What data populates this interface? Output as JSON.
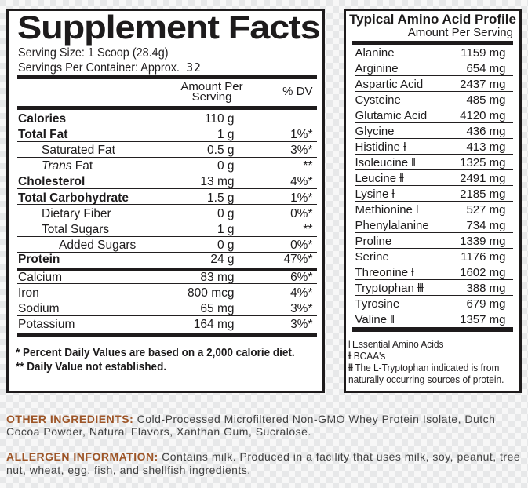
{
  "colors": {
    "accent_orange": "#9e5428",
    "panel_border": "#1d1a1b",
    "body_text": "#3f3f3f",
    "checker_dark": "#e8e8e8",
    "checker_light": "#f7f7f7"
  },
  "left_panel": {
    "title": "Supplement Facts",
    "serving_size": "Serving Size: 1 Scoop (28.4g)",
    "servings_per_container_label": "Servings Per Container: Approx.",
    "servings_per_container_value": "32",
    "header": {
      "amount_line1": "Amount Per",
      "amount_line2": "Serving",
      "dv": "% DV"
    },
    "rows": [
      {
        "name": "Calories",
        "value": "110 g",
        "dv": "",
        "style": "b"
      },
      {
        "name": "Total Fat",
        "value": "1 g",
        "dv": "1%*",
        "style": "b"
      },
      {
        "name": "Saturated Fat",
        "value": "0.5 g",
        "dv": "3%*",
        "indent": "i1"
      },
      {
        "name_em": "Trans",
        "name": " Fat",
        "value": "0 g",
        "dv": "**",
        "indent": "i1"
      },
      {
        "name": "Cholesterol",
        "value": "13 mg",
        "dv": "4%*",
        "style": "b"
      },
      {
        "name": "Total Carbohydrate",
        "value": "1.5 g",
        "dv": "1%*",
        "style": "b"
      },
      {
        "name": "Dietary Fiber",
        "value": "0 g",
        "dv": "0%*",
        "indent": "i1"
      },
      {
        "name": "Total Sugars",
        "value": "1 g",
        "dv": "**",
        "indent": "i1"
      },
      {
        "name": "Added Sugars",
        "value": "0 g",
        "dv": "0%*",
        "indent": "i2"
      },
      {
        "name": "Protein",
        "value": "24 g",
        "dv": "47%*",
        "style": "b"
      }
    ],
    "mineral_rows": [
      {
        "name": "Calcium",
        "value": "83 mg",
        "dv": "6%*"
      },
      {
        "name": "Iron",
        "value": "800 mcg",
        "dv": "4%*"
      },
      {
        "name": "Sodium",
        "value": "65 mg",
        "dv": "3%*"
      },
      {
        "name": "Potassium",
        "value": "164 mg",
        "dv": "3%*"
      }
    ],
    "footnotes": [
      {
        "text": "* Percent Daily Values are based on a 2,000 calorie diet."
      },
      {
        "text": "** Daily Value not established."
      }
    ]
  },
  "right_panel": {
    "title": "Typical Amino Acid Profile",
    "subtitle": "Amount Per Serving",
    "rows": [
      {
        "name": "Alanine",
        "mark": "",
        "value": "1159 mg"
      },
      {
        "name": "Arginine",
        "mark": "",
        "value": "654 mg"
      },
      {
        "name": "Aspartic Acid",
        "mark": "",
        "value": "2437 mg"
      },
      {
        "name": "Cysteine",
        "mark": "",
        "value": "485 mg"
      },
      {
        "name": "Glutamic Acid",
        "mark": "",
        "value": "4120 mg"
      },
      {
        "name": "Glycine",
        "mark": "",
        "value": "436 mg"
      },
      {
        "name": "Histidine",
        "mark": "ƚ",
        "value": "413 mg"
      },
      {
        "name": "Isoleucine",
        "mark": "ƚƚ",
        "value": "1325 mg"
      },
      {
        "name": "Leucine",
        "mark": "ƚƚ",
        "value": "2491 mg"
      },
      {
        "name": "Lysine",
        "mark": "ƚ",
        "value": "2185 mg"
      },
      {
        "name": "Methionine",
        "mark": "ƚ",
        "value": "527 mg"
      },
      {
        "name": "Phenylalanine",
        "mark": "",
        "value": "734 mg"
      },
      {
        "name": "Proline",
        "mark": "",
        "value": "1339 mg"
      },
      {
        "name": "Serine",
        "mark": "",
        "value": "1176 mg"
      },
      {
        "name": "Threonine",
        "mark": "ƚ",
        "value": "1602 mg"
      },
      {
        "name": "Tryptophan",
        "mark": "ƚƚƚ",
        "value": "388 mg"
      },
      {
        "name": "Tyrosine",
        "mark": "",
        "value": "679 mg"
      },
      {
        "name": "Valine",
        "mark": "ƚƚ",
        "value": "1357 mg"
      }
    ],
    "footnotes": [
      {
        "mark": "ƚ",
        "text": "Essential Amino Acids"
      },
      {
        "mark": "ƚƚ",
        "text": "BCAA's"
      },
      {
        "mark": "ƚƚƚ",
        "text": "The L-Tryptophan indicated is from naturally occurring sources of protein."
      }
    ]
  },
  "bottom": {
    "paragraphs": [
      {
        "label": "OTHER INGREDIENTS:",
        "text": "Cold-Processed Microfiltered Non-GMO Whey Protein Isolate, Dutch Cocoa Powder, Natural Flavors, Xanthan Gum, Sucralose."
      },
      {
        "label": "ALLERGEN INFORMATION:",
        "text": "Contains milk. Produced in a facility that uses milk, soy, peanut, tree nut, wheat, egg, fish, and shellfish ingredients."
      }
    ]
  }
}
